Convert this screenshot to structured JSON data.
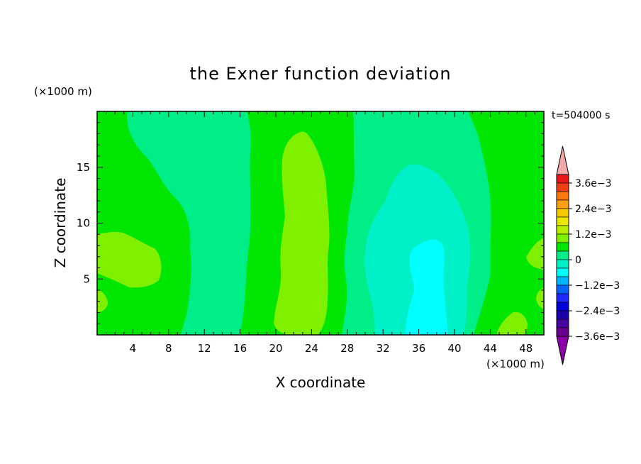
{
  "chart_data": {
    "type": "heatmap",
    "title": "the Exner function deviation",
    "xlabel": "X coordinate",
    "ylabel": "Z coordinate",
    "x_unit": "(×1000 m)",
    "y_unit": "(×1000 m)",
    "time_label": "t=504000 s",
    "xlim": [
      0,
      50
    ],
    "ylim": [
      0,
      20
    ],
    "x_ticks": [
      "4",
      "8",
      "12",
      "16",
      "20",
      "24",
      "28",
      "32",
      "36",
      "40",
      "44",
      "48"
    ],
    "x_tick_values": [
      4,
      8,
      12,
      16,
      20,
      24,
      28,
      32,
      36,
      40,
      44,
      48
    ],
    "y_ticks": [
      "5",
      "10",
      "15"
    ],
    "y_tick_values": [
      5,
      10,
      15
    ],
    "colorbar": {
      "labels": [
        "3.6e−3",
        "2.4e−3",
        "1.2e−3",
        "0",
        "−1.2e−3",
        "−2.4e−3",
        "−3.6e−3"
      ],
      "colors_top_to_bottom": [
        "#e8181c",
        "#f04010",
        "#f87a0c",
        "#fba010",
        "#f5c800",
        "#e8e800",
        "#b8ee00",
        "#7ef000",
        "#00e600",
        "#00ee88",
        "#00f0c8",
        "#00ffff",
        "#00b4ff",
        "#0064ff",
        "#1e28ff",
        "#0000d8",
        "#1c00a8",
        "#48049e",
        "#6c0090"
      ],
      "over_color": "#f4a8a8",
      "under_color": "#8c00a8"
    },
    "field_levels": [
      {
        "level": "0 to 1.2e-3",
        "color": "#00e600"
      },
      {
        "level": "1.2e-3 to 2.4e-3 (weak)",
        "color": "#7ef000"
      },
      {
        "level": "-1.2e-3 to 0 (weak)",
        "color": "#00ee88"
      },
      {
        "level": "-1.2e-3 to 0",
        "color": "#00f0c8"
      },
      {
        "level": "below -1.2e-3",
        "color": "#00ffff"
      }
    ]
  }
}
